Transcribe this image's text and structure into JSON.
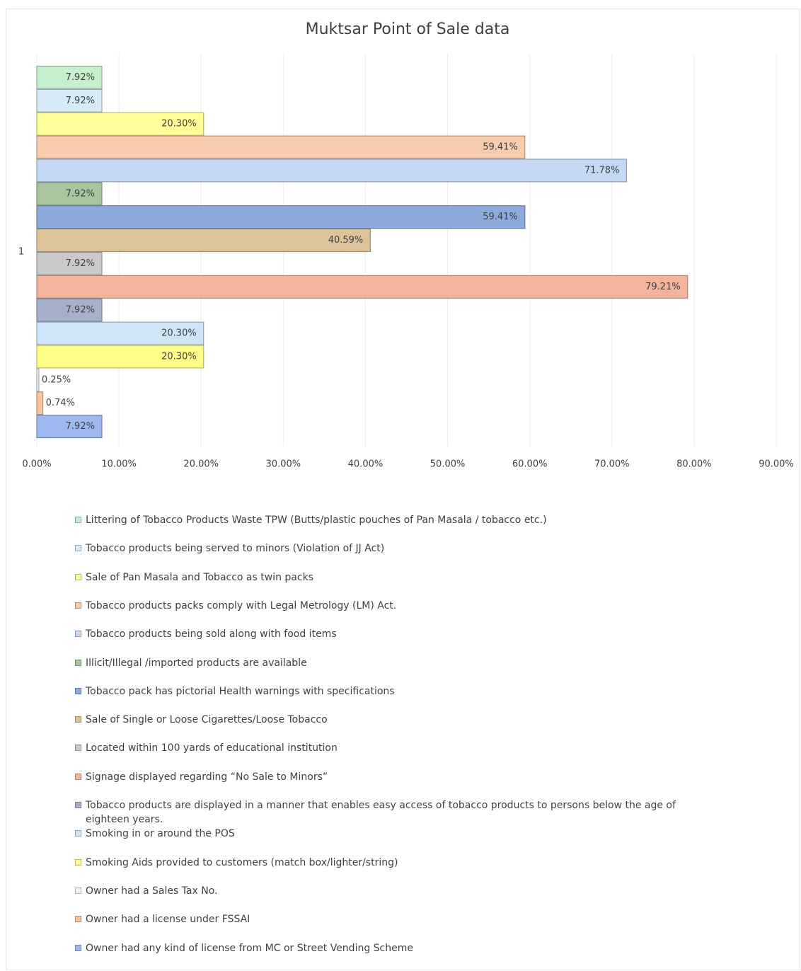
{
  "chart_data": {
    "type": "bar",
    "orientation": "horizontal",
    "title": "Muktsar Point of Sale data",
    "categories": [
      "1"
    ],
    "series": [
      {
        "name": "Littering of Tobacco Products Waste TPW (Butts/plastic pouches of Pan Masala / tobacco  etc.)",
        "color": "#c6efce",
        "values": [
          7.92
        ],
        "value_labels": [
          "7.92%"
        ]
      },
      {
        "name": "Tobacco products being served to minors (Violation of JJ Act)",
        "color": "#d6eaf8",
        "values": [
          7.92
        ],
        "value_labels": [
          "7.92%"
        ]
      },
      {
        "name": "Sale of Pan Masala and Tobacco as twin packs",
        "color": "#ffff99",
        "values": [
          20.3
        ],
        "value_labels": [
          "20.30%"
        ]
      },
      {
        "name": "Tobacco products packs comply with Legal Metrology (LM) Act.",
        "color": "#f8cbad",
        "values": [
          59.41
        ],
        "value_labels": [
          "59.41%"
        ]
      },
      {
        "name": "Tobacco products being sold along with food items",
        "color": "#c5d9f5",
        "values": [
          71.78
        ],
        "value_labels": [
          "71.78%"
        ]
      },
      {
        "name": "Illicit/Illegal /imported products are available",
        "color": "#a9c5a0",
        "values": [
          7.92
        ],
        "value_labels": [
          "7.92%"
        ]
      },
      {
        "name": "Tobacco pack has pictorial Health warnings with specifications",
        "color": "#8eaadb",
        "values": [
          59.41
        ],
        "value_labels": [
          "59.41%"
        ]
      },
      {
        "name": "Sale of Single or Loose Cigarettes/Loose Tobacco",
        "color": "#dcc39a",
        "values": [
          40.59
        ],
        "value_labels": [
          "40.59%"
        ]
      },
      {
        "name": "Located within 100 yards of educational institution",
        "color": "#c9c9c9",
        "values": [
          7.92
        ],
        "value_labels": [
          "7.92%"
        ]
      },
      {
        "name": "Signage displayed regarding “No Sale to Minors”",
        "color": "#f4b39d",
        "values": [
          79.21
        ],
        "value_labels": [
          "79.21%"
        ]
      },
      {
        "name": "Tobacco products are displayed in a manner that enables easy access of tobacco products to persons below the age of eighteen years.",
        "color": "#a6b0c9",
        "values": [
          7.92
        ],
        "value_labels": [
          "7.92%"
        ]
      },
      {
        "name": "Smoking in or around the POS",
        "color": "#cfe4f7",
        "values": [
          20.3
        ],
        "value_labels": [
          "20.30%"
        ]
      },
      {
        "name": "Smoking Aids provided to customers (match box/lighter/string)",
        "color": "#ffff88",
        "values": [
          20.3
        ],
        "value_labels": [
          "20.30%"
        ]
      },
      {
        "name": "Owner had a Sales Tax No.",
        "color": "#f2f2f2",
        "values": [
          0.25
        ],
        "value_labels": [
          "0.25%"
        ]
      },
      {
        "name": "Owner had a license under FSSAI",
        "color": "#f8c59d",
        "values": [
          0.74
        ],
        "value_labels": [
          "0.74%"
        ]
      },
      {
        "name": "Owner had any kind of license from MC or Street Vending Scheme",
        "color": "#9fb8ef",
        "values": [
          7.92
        ],
        "value_labels": [
          "7.92%"
        ]
      }
    ],
    "xlim": [
      0,
      90
    ],
    "xticks": [
      {
        "value": 0,
        "label": "0.00%"
      },
      {
        "value": 10,
        "label": "10.00%"
      },
      {
        "value": 20,
        "label": "20.00%"
      },
      {
        "value": 30,
        "label": "30.00%"
      },
      {
        "value": 40,
        "label": "40.00%"
      },
      {
        "value": 50,
        "label": "50.00%"
      },
      {
        "value": 60,
        "label": "60.00%"
      },
      {
        "value": 70,
        "label": "70.00%"
      },
      {
        "value": 80,
        "label": "80.00%"
      },
      {
        "value": 90,
        "label": "90.00%"
      }
    ],
    "grid": true,
    "legend": "bottom"
  }
}
